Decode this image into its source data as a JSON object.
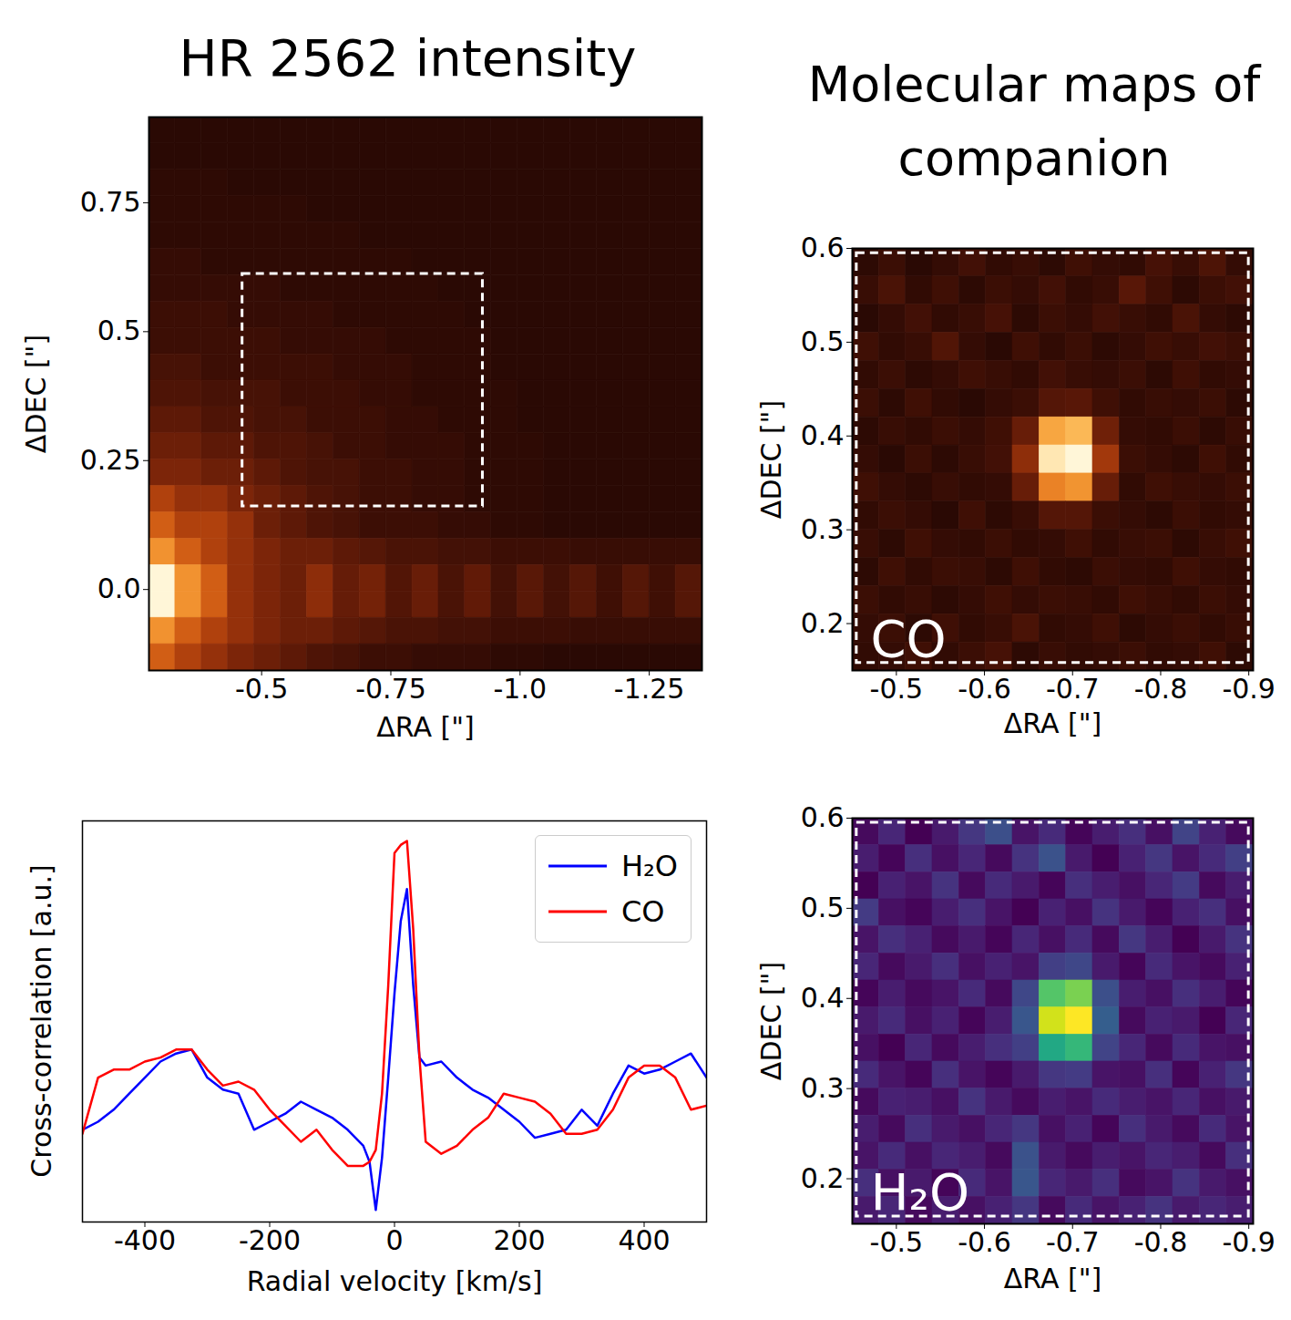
{
  "chart_data": [
    {
      "type": "heatmap",
      "title": "HR 2562 intensity",
      "xlabel": "ΔRA [\"]",
      "ylabel": "ΔDEC [\"]",
      "xlim": [
        -0.282,
        -1.352
      ],
      "ylim": [
        -0.157,
        0.916
      ],
      "xticks": [
        -0.5,
        -0.75,
        {
          "value": -1,
          "label": "-1.0"
        },
        -1.25
      ],
      "yticks": [
        {
          "value": 0,
          "label": "0.0"
        },
        0.25,
        0.5,
        0.75
      ],
      "color": "afmhot",
      "box": {
        "x": [
          -0.463,
          -0.928
        ],
        "y": [
          0.161,
          0.612
        ]
      },
      "z": [
        [
          1,
          1,
          1,
          1,
          1,
          1,
          1,
          1,
          1,
          1,
          1,
          1,
          1,
          1,
          1,
          1,
          1,
          1,
          1,
          1,
          1
        ],
        [
          1,
          1,
          1,
          1,
          1,
          1,
          1,
          1,
          1,
          1,
          1,
          1,
          1,
          1,
          1,
          1,
          1,
          1,
          1,
          1,
          1
        ],
        [
          1.1,
          1.1,
          1.1,
          1,
          1,
          1,
          1,
          1,
          1,
          1,
          1,
          1,
          1,
          1,
          1,
          1,
          1,
          1,
          1,
          1,
          1
        ],
        [
          1.1,
          1.1,
          1.1,
          1.1,
          1.1,
          1.1,
          1,
          1,
          1,
          1,
          1,
          1,
          1,
          1,
          1,
          1,
          1,
          1,
          1,
          1,
          1
        ],
        [
          1.1,
          1.1,
          1.1,
          1.1,
          1.1,
          1.1,
          1.1,
          1.1,
          1,
          1,
          1,
          1,
          1,
          1,
          1,
          1,
          1,
          1,
          1,
          1,
          1
        ],
        [
          1.3,
          1.3,
          1.1,
          1.1,
          1.1,
          1.1,
          1.1,
          1.1,
          1.1,
          1.1,
          1,
          1,
          1,
          1,
          1,
          1,
          1,
          1,
          1,
          1,
          1
        ],
        [
          1.3,
          1.3,
          1.3,
          1.3,
          1.3,
          1.1,
          1.1,
          1.1,
          1.1,
          1.1,
          1.1,
          1,
          1,
          1,
          1,
          1,
          1,
          1,
          1,
          1,
          1
        ],
        [
          1.5,
          1.5,
          1.5,
          1.3,
          1.3,
          1.3,
          1.3,
          1.1,
          1.1,
          1.1,
          1.1,
          1.1,
          1,
          1,
          1,
          1,
          1,
          1,
          1,
          1,
          1
        ],
        [
          1.5,
          1.5,
          1.5,
          1.5,
          1.5,
          1.3,
          1.3,
          1.3,
          1.3,
          1.1,
          1.1,
          1.1,
          1.1,
          1,
          1,
          1,
          1,
          1,
          1,
          1,
          1
        ],
        [
          1.8,
          1.8,
          1.5,
          1.5,
          1.5,
          1.5,
          1.5,
          1.3,
          1.3,
          1.3,
          1.1,
          1.1,
          1.1,
          1,
          1,
          1,
          1,
          1,
          1,
          1,
          1
        ],
        [
          2.0,
          2.0,
          1.8,
          1.8,
          1.8,
          1.5,
          1.5,
          1.5,
          1.3,
          1.3,
          1.1,
          1.1,
          1.1,
          1.1,
          1,
          1,
          1,
          1,
          1,
          1,
          1
        ],
        [
          2.4,
          2.4,
          2.0,
          2.0,
          1.8,
          1.8,
          1.5,
          1.5,
          1.5,
          1.3,
          1.3,
          1.1,
          1.1,
          1.1,
          1,
          1,
          1,
          1,
          1,
          1,
          1
        ],
        [
          2.8,
          2.8,
          2.4,
          2.4,
          2.0,
          2.0,
          1.8,
          1.5,
          1.5,
          1.3,
          1.3,
          1.3,
          1.1,
          1.1,
          1.1,
          1,
          1,
          1,
          1,
          1,
          1
        ],
        [
          3.2,
          3.2,
          2.8,
          2.8,
          2.4,
          2.0,
          1.8,
          1.8,
          1.5,
          1.5,
          1.3,
          1.3,
          1.1,
          1.1,
          1.1,
          1,
          1,
          1,
          1,
          1,
          1
        ],
        [
          4.5,
          3.8,
          3.8,
          3.2,
          2.8,
          2.4,
          2.0,
          1.8,
          1.5,
          1.5,
          1.3,
          1.3,
          1.1,
          1.1,
          1.1,
          1,
          1,
          1,
          1,
          1,
          1
        ],
        [
          5.5,
          4.5,
          4.5,
          3.8,
          2.8,
          2.4,
          2.0,
          1.8,
          1.5,
          1.5,
          1.5,
          1.3,
          1.3,
          1.1,
          1.1,
          1,
          1,
          1,
          1,
          1,
          1
        ],
        [
          7,
          5.5,
          4.5,
          3.8,
          3.2,
          2.8,
          2.8,
          2.4,
          2.2,
          1.9,
          1.9,
          1.7,
          1.7,
          1.5,
          1.5,
          1.5,
          1.4,
          1.4,
          1.4,
          1.4,
          1.4
        ],
        [
          10,
          7,
          5.5,
          3.8,
          3.2,
          2.8,
          3.6,
          2.6,
          3.0,
          2.1,
          2.7,
          1.9,
          2.5,
          1.7,
          2.3,
          1.7,
          2.2,
          1.6,
          2.2,
          1.6,
          2.2
        ],
        [
          10,
          7,
          5.5,
          3.8,
          3.2,
          2.8,
          3.6,
          2.6,
          3.0,
          2.1,
          2.7,
          1.9,
          2.5,
          1.7,
          2.3,
          1.7,
          2.2,
          1.6,
          2.2,
          1.6,
          2.2
        ],
        [
          7,
          5.5,
          4.5,
          3.8,
          3.2,
          2.8,
          2.8,
          2.4,
          2.2,
          1.9,
          1.9,
          1.7,
          1.7,
          1.5,
          1.5,
          1.5,
          1.4,
          1.4,
          1.4,
          1.4,
          1.4
        ],
        [
          5.5,
          4.5,
          3.8,
          3.2,
          2.8,
          2.4,
          2.0,
          1.8,
          1.5,
          1.5,
          1.3,
          1.3,
          1.3,
          1.1,
          1.1,
          1,
          1,
          1,
          1,
          1,
          1
        ]
      ]
    },
    {
      "type": "heatmap",
      "title": "Molecular maps of companion",
      "annotation": "CO",
      "xlabel": "ΔRA [\"]",
      "ylabel": "ΔDEC [\"]",
      "xlim": [
        -0.45,
        -0.905
      ],
      "ylim": [
        0.15,
        0.6
      ],
      "xticks": [
        -0.5,
        -0.6,
        -0.7,
        -0.8,
        -0.9
      ],
      "yticks": [
        0.2,
        0.3,
        0.4,
        0.5,
        0.6
      ],
      "color": "afmhot",
      "box": {
        "x": [
          -0.455,
          -0.9
        ],
        "y": [
          0.158,
          0.595
        ]
      },
      "z": [
        [
          0.4,
          0.8,
          0.3,
          0.6,
          1.0,
          0.5,
          0.7,
          0.4,
          0.9,
          0.6,
          0.5,
          1.1,
          0.7,
          1.3,
          0.6
        ],
        [
          0.7,
          1.2,
          0.5,
          0.9,
          0.4,
          0.8,
          0.6,
          1.0,
          0.5,
          0.7,
          1.6,
          0.9,
          0.4,
          0.8,
          1.0
        ],
        [
          0.3,
          0.6,
          1.0,
          0.5,
          0.7,
          1.1,
          0.4,
          0.8,
          0.6,
          1.0,
          0.7,
          0.5,
          1.2,
          0.6,
          0.4
        ],
        [
          0.9,
          0.5,
          0.7,
          1.4,
          0.6,
          0.3,
          0.9,
          0.5,
          0.8,
          0.4,
          0.6,
          0.9,
          0.7,
          1.0,
          0.8
        ],
        [
          0.5,
          0.8,
          0.4,
          0.6,
          0.9,
          0.7,
          0.5,
          1.0,
          0.7,
          0.6,
          0.8,
          0.4,
          0.9,
          0.5,
          0.6
        ],
        [
          0.8,
          0.4,
          0.9,
          0.5,
          0.3,
          0.6,
          0.8,
          1.5,
          1.6,
          0.9,
          0.5,
          0.7,
          0.6,
          0.8,
          0.4
        ],
        [
          0.4,
          0.7,
          0.5,
          0.8,
          0.6,
          0.9,
          2.0,
          7.0,
          7.5,
          2.2,
          0.6,
          0.5,
          0.8,
          0.4,
          0.7
        ],
        [
          0.6,
          0.3,
          0.8,
          0.4,
          0.7,
          1.0,
          3.0,
          9.0,
          9.5,
          3.5,
          0.8,
          0.6,
          0.4,
          0.9,
          0.5
        ],
        [
          0.9,
          0.6,
          0.4,
          0.7,
          0.5,
          0.6,
          2.0,
          6.0,
          6.5,
          2.0,
          0.5,
          0.9,
          0.7,
          0.6,
          0.8
        ],
        [
          0.5,
          0.8,
          0.6,
          0.3,
          0.9,
          0.4,
          0.7,
          1.5,
          1.5,
          0.8,
          0.6,
          0.4,
          0.8,
          0.5,
          0.6
        ],
        [
          0.7,
          0.4,
          0.9,
          0.6,
          0.5,
          0.8,
          0.5,
          0.6,
          0.9,
          0.5,
          0.7,
          0.8,
          0.4,
          0.7,
          0.9
        ],
        [
          0.4,
          0.9,
          0.5,
          0.8,
          0.7,
          0.4,
          0.9,
          0.5,
          0.4,
          0.8,
          0.6,
          0.5,
          0.9,
          0.6,
          0.5
        ],
        [
          0.8,
          0.5,
          0.7,
          0.4,
          0.6,
          0.9,
          0.6,
          0.8,
          0.7,
          0.5,
          0.9,
          0.7,
          0.5,
          0.8,
          0.6
        ],
        [
          0.6,
          0.8,
          0.4,
          0.9,
          0.5,
          0.7,
          1.2,
          0.5,
          0.6,
          0.9,
          0.4,
          0.6,
          0.8,
          0.5,
          0.7
        ],
        [
          0.5,
          0.6,
          0.9,
          0.5,
          0.8,
          1.1,
          0.4,
          0.7,
          0.5,
          0.6,
          0.8,
          0.5,
          0.6,
          0.9,
          0.4
        ]
      ]
    },
    {
      "type": "heatmap",
      "annotation": "H₂O",
      "xlabel": "ΔRA [\"]",
      "ylabel": "ΔDEC [\"]",
      "xlim": [
        -0.45,
        -0.905
      ],
      "ylim": [
        0.15,
        0.6
      ],
      "xticks": [
        -0.5,
        -0.6,
        -0.7,
        -0.8,
        -0.9
      ],
      "yticks": [
        0.2,
        0.3,
        0.4,
        0.5,
        0.6
      ],
      "color": "viridis",
      "box": {
        "x": [
          -0.455,
          -0.9
        ],
        "y": [
          0.158,
          0.595
        ]
      },
      "z": [
        [
          1.2,
          1.8,
          1.0,
          1.5,
          2.2,
          2.8,
          1.4,
          1.9,
          1.1,
          1.6,
          2.0,
          1.3,
          2.5,
          1.7,
          1.2
        ],
        [
          1.6,
          1.1,
          2.0,
          1.3,
          1.8,
          1.2,
          2.1,
          2.9,
          1.5,
          1.0,
          1.7,
          2.2,
          1.4,
          1.9,
          2.4
        ],
        [
          1.0,
          1.7,
          1.4,
          2.1,
          1.2,
          1.9,
          1.5,
          1.1,
          2.0,
          1.6,
          1.3,
          1.8,
          2.3,
          1.2,
          1.6
        ],
        [
          2.3,
          1.3,
          1.1,
          1.6,
          2.0,
          1.4,
          1.0,
          1.7,
          1.3,
          2.1,
          1.5,
          1.1,
          1.7,
          2.0,
          1.3
        ],
        [
          1.4,
          2.0,
          1.7,
          1.2,
          1.5,
          1.1,
          1.8,
          1.3,
          1.9,
          1.2,
          2.2,
          1.6,
          1.0,
          1.5,
          2.1
        ],
        [
          1.8,
          1.2,
          1.5,
          2.0,
          1.3,
          1.7,
          1.4,
          2.4,
          2.6,
          1.5,
          1.1,
          1.9,
          1.4,
          1.2,
          1.7
        ],
        [
          1.1,
          1.6,
          1.2,
          1.4,
          1.9,
          1.2,
          2.6,
          6.5,
          7.0,
          2.8,
          1.6,
          1.3,
          2.0,
          1.6,
          1.1
        ],
        [
          1.5,
          1.9,
          1.3,
          1.7,
          1.1,
          1.6,
          3.0,
          8.0,
          8.5,
          3.2,
          1.2,
          1.7,
          1.5,
          1.0,
          1.8
        ],
        [
          1.3,
          1.0,
          1.8,
          1.2,
          1.6,
          2.0,
          2.4,
          5.5,
          6.0,
          2.5,
          1.8,
          1.2,
          1.9,
          1.4,
          1.3
        ],
        [
          1.9,
          1.4,
          1.1,
          2.0,
          1.4,
          1.1,
          1.5,
          2.2,
          2.3,
          1.4,
          1.3,
          2.0,
          1.1,
          1.7,
          2.2
        ],
        [
          1.2,
          1.7,
          1.6,
          1.3,
          2.1,
          1.5,
          1.2,
          1.6,
          1.4,
          1.9,
          1.6,
          1.4,
          1.8,
          1.3,
          1.5
        ],
        [
          1.6,
          1.2,
          2.0,
          1.5,
          1.3,
          1.8,
          2.2,
          1.3,
          1.7,
          1.1,
          2.0,
          1.5,
          1.2,
          1.9,
          1.4
        ],
        [
          1.4,
          1.9,
          1.3,
          1.8,
          1.6,
          1.2,
          2.9,
          1.5,
          1.2,
          1.6,
          1.4,
          1.8,
          1.6,
          1.2,
          2.0
        ],
        [
          2.0,
          1.3,
          1.5,
          1.1,
          1.9,
          1.4,
          3.0,
          1.8,
          1.5,
          2.0,
          1.2,
          1.4,
          2.1,
          1.5,
          1.3
        ],
        [
          1.5,
          1.8,
          1.2,
          1.6,
          1.3,
          1.7,
          2.2,
          1.2,
          1.9,
          1.4,
          1.7,
          2.1,
          1.5,
          1.8,
          1.6
        ]
      ]
    },
    {
      "type": "line",
      "xlabel": "Radial velocity [km/s]",
      "ylabel": "Cross-correlation [a.u.]",
      "xlim": [
        -500,
        500
      ],
      "xticks": [
        -400,
        -200,
        0,
        200,
        400
      ],
      "ylim": [
        0,
        1
      ],
      "tick_labels": "x",
      "legend": "top-right",
      "x": [
        -500,
        -475,
        -450,
        -425,
        -400,
        -375,
        -350,
        -325,
        -300,
        -275,
        -250,
        -225,
        -200,
        -175,
        -150,
        -125,
        -100,
        -75,
        -50,
        -40,
        -30,
        -20,
        -10,
        0,
        10,
        20,
        30,
        40,
        50,
        75,
        100,
        125,
        150,
        175,
        200,
        225,
        250,
        275,
        300,
        325,
        350,
        375,
        400,
        425,
        450,
        475,
        500
      ],
      "series": [
        {
          "name": "H₂O",
          "color": "#0000ff",
          "values": [
            0.23,
            0.25,
            0.28,
            0.32,
            0.36,
            0.4,
            0.42,
            0.43,
            0.36,
            0.33,
            0.32,
            0.23,
            0.25,
            0.27,
            0.3,
            0.28,
            0.26,
            0.23,
            0.19,
            0.15,
            0.03,
            0.16,
            0.36,
            0.57,
            0.75,
            0.83,
            0.59,
            0.41,
            0.39,
            0.4,
            0.36,
            0.33,
            0.31,
            0.28,
            0.25,
            0.21,
            0.22,
            0.23,
            0.28,
            0.24,
            0.32,
            0.39,
            0.37,
            0.38,
            0.4,
            0.42,
            0.36
          ]
        },
        {
          "name": "CO",
          "color": "#ff0000",
          "values": [
            0.22,
            0.36,
            0.38,
            0.38,
            0.4,
            0.41,
            0.43,
            0.43,
            0.38,
            0.34,
            0.35,
            0.33,
            0.28,
            0.24,
            0.2,
            0.23,
            0.18,
            0.14,
            0.14,
            0.15,
            0.18,
            0.32,
            0.59,
            0.92,
            0.94,
            0.95,
            0.73,
            0.41,
            0.2,
            0.17,
            0.19,
            0.23,
            0.26,
            0.32,
            0.31,
            0.3,
            0.27,
            0.22,
            0.22,
            0.23,
            0.28,
            0.36,
            0.39,
            0.39,
            0.36,
            0.28,
            0.29
          ]
        }
      ]
    }
  ]
}
